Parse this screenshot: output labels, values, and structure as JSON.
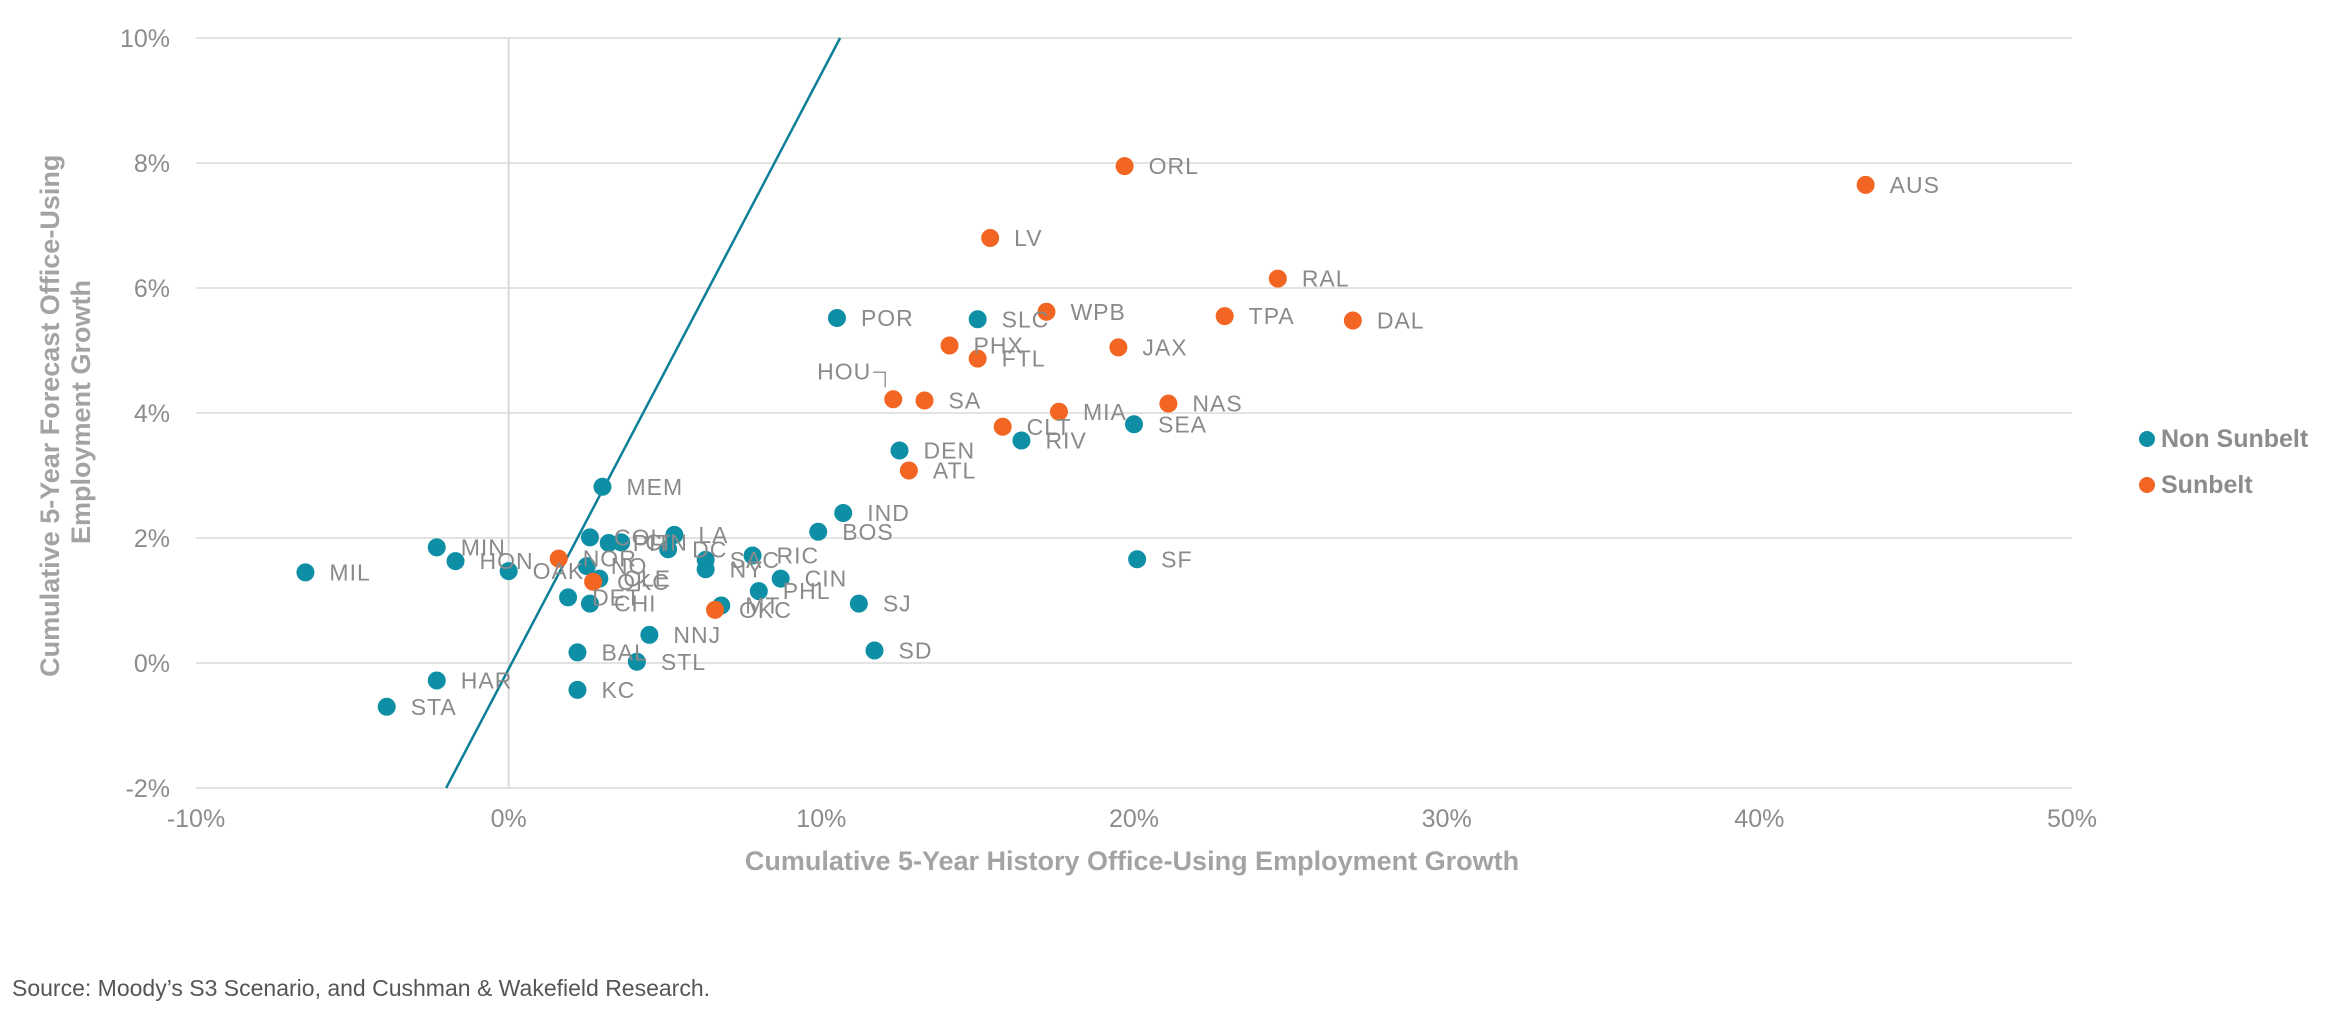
{
  "chart_data": {
    "type": "scatter",
    "xlabel": "Cumulative 5-Year History Office-Using Employment Growth",
    "ylabel": "Cumulative 5-Year Forecast Office-Using Employment Growth",
    "xlim": [
      -10,
      50
    ],
    "ylim": [
      -2,
      10
    ],
    "x_ticks": [
      -10,
      0,
      10,
      20,
      30,
      40,
      50
    ],
    "y_ticks": [
      -2,
      0,
      2,
      4,
      6,
      8,
      10
    ],
    "x_tick_labels": [
      "-10%",
      "0%",
      "10%",
      "20%",
      "30%",
      "40%",
      "50%"
    ],
    "y_tick_labels": [
      "-2%",
      "0%",
      "2%",
      "4%",
      "6%",
      "8%",
      "10%"
    ],
    "grid": "horizontal",
    "legend_position": "right",
    "reference_line": {
      "x": [
        -2,
        10.6
      ],
      "y": [
        -2,
        10
      ]
    },
    "series": [
      {
        "name": "Non Sunbelt",
        "color": "#0e8fa6",
        "points": [
          {
            "label": "MIL",
            "x": -6.5,
            "y": 1.45
          },
          {
            "label": "MIN",
            "x": -2.3,
            "y": 1.85
          },
          {
            "label": "HON",
            "x": -1.7,
            "y": 1.63
          },
          {
            "label": "OAK",
            "x": 0.0,
            "y": 1.47
          },
          {
            "label": "HAR",
            "x": -2.3,
            "y": -0.28
          },
          {
            "label": "STA",
            "x": -3.9,
            "y": -0.7
          },
          {
            "label": "MEM",
            "x": 3.0,
            "y": 2.82
          },
          {
            "label": "COL",
            "x": 2.6,
            "y": 2.01
          },
          {
            "label": "PIT",
            "x": 3.2,
            "y": 1.92
          },
          {
            "label": "CIN",
            "x": 3.6,
            "y": 1.93
          },
          {
            "label": "LA",
            "x": 5.3,
            "y": 2.05
          },
          {
            "label": "DC",
            "x": 5.1,
            "y": 1.82
          },
          {
            "label": "NO",
            "x": 2.5,
            "y": 1.55
          },
          {
            "label": "CLE",
            "x": 2.9,
            "y": 1.35
          },
          {
            "label": "DET",
            "x": 1.9,
            "y": 1.05
          },
          {
            "label": "CHI",
            "x": 2.6,
            "y": 0.95
          },
          {
            "label": "BAL",
            "x": 2.2,
            "y": 0.17
          },
          {
            "label": "KC",
            "x": 2.2,
            "y": -0.43
          },
          {
            "label": "STL",
            "x": 4.1,
            "y": 0.02
          },
          {
            "label": "NNJ",
            "x": 4.5,
            "y": 0.45
          },
          {
            "label": "NY",
            "x": 6.3,
            "y": 1.5
          },
          {
            "label": "SAC",
            "x": 6.3,
            "y": 1.65
          },
          {
            "label": "RIC",
            "x": 7.8,
            "y": 1.72
          },
          {
            "label": "CIN",
            "x": 8.7,
            "y": 1.35
          },
          {
            "label": "PHL",
            "x": 8.0,
            "y": 1.15
          },
          {
            "label": "MT",
            "x": 6.8,
            "y": 0.92
          },
          {
            "label": "BOS",
            "x": 9.9,
            "y": 2.1
          },
          {
            "label": "IND",
            "x": 10.7,
            "y": 2.4
          },
          {
            "label": "SJ",
            "x": 11.2,
            "y": 0.95
          },
          {
            "label": "SD",
            "x": 11.7,
            "y": 0.2
          },
          {
            "label": "POR",
            "x": 10.5,
            "y": 5.52
          },
          {
            "label": "SLC",
            "x": 15.0,
            "y": 5.5
          },
          {
            "label": "DEN",
            "x": 12.5,
            "y": 3.4
          },
          {
            "label": "RIV",
            "x": 16.4,
            "y": 3.56
          },
          {
            "label": "SEA",
            "x": 20.0,
            "y": 3.82
          },
          {
            "label": "SF",
            "x": 20.1,
            "y": 1.66
          }
        ]
      },
      {
        "name": "Sunbelt",
        "color": "#f26522",
        "points": [
          {
            "label": "NOR",
            "x": 1.6,
            "y": 1.67
          },
          {
            "label": "OKC",
            "x": 2.7,
            "y": 1.3
          },
          {
            "label": "OKC",
            "x": 6.6,
            "y": 0.85
          },
          {
            "label": "HOU",
            "x": 12.3,
            "y": 4.22
          },
          {
            "label": "SA",
            "x": 13.3,
            "y": 4.2
          },
          {
            "label": "ATL",
            "x": 12.8,
            "y": 3.08
          },
          {
            "label": "PHX",
            "x": 14.1,
            "y": 5.08
          },
          {
            "label": "FTL",
            "x": 15.0,
            "y": 4.87
          },
          {
            "label": "CLT",
            "x": 15.8,
            "y": 3.78
          },
          {
            "label": "MIA",
            "x": 17.6,
            "y": 4.02
          },
          {
            "label": "LV",
            "x": 15.4,
            "y": 6.8
          },
          {
            "label": "WPB",
            "x": 17.2,
            "y": 5.62
          },
          {
            "label": "JAX",
            "x": 19.5,
            "y": 5.05
          },
          {
            "label": "ORL",
            "x": 19.7,
            "y": 7.95
          },
          {
            "label": "NAS",
            "x": 21.1,
            "y": 4.15
          },
          {
            "label": "TPA",
            "x": 22.9,
            "y": 5.55
          },
          {
            "label": "RAL",
            "x": 24.6,
            "y": 6.15
          },
          {
            "label": "DAL",
            "x": 27.0,
            "y": 5.48
          },
          {
            "label": "AUS",
            "x": 43.4,
            "y": 7.65
          }
        ]
      }
    ]
  },
  "source_note": "Source: Moody’s S3 Scenario, and Cushman & Wakefield Research."
}
